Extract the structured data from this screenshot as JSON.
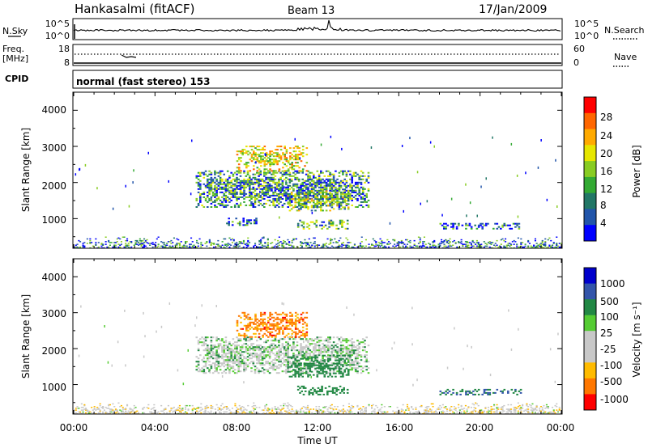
{
  "header": {
    "station": "Hankasalmi (fitACF)",
    "beam": "Beam 13",
    "date": "17/Jan/2009"
  },
  "strips": {
    "nsky_label": "N.Sky",
    "nsky_ticks": [
      "10^5",
      "10^0"
    ],
    "nsearch_label": "N.Search",
    "nsearch_ticks": [
      "10^5",
      "10^0"
    ],
    "freq_label_1": "Freq.",
    "freq_label_2": "[MHz]",
    "freq_ticks": [
      "18",
      "8"
    ],
    "nave_label": "Nave",
    "nave_ticks": [
      "60",
      "0"
    ],
    "cpid_label": "CPID",
    "cpid_text": "normal (fast stereo) 153"
  },
  "axes": {
    "ylabel": "Slant Range [km]",
    "yticks": [
      "4000",
      "3000",
      "2000",
      "1000"
    ],
    "xlabel": "Time UT",
    "xticks": [
      "00:00",
      "04:00",
      "08:00",
      "12:00",
      "16:00",
      "20:00",
      "00:00"
    ]
  },
  "colorbars": {
    "power": {
      "label": "Power [dB]",
      "ticks": [
        "28",
        "24",
        "20",
        "16",
        "12",
        "8",
        "4"
      ],
      "colors": [
        "#ff0000",
        "#ff6600",
        "#ffaa00",
        "#e6e600",
        "#88cc22",
        "#33aa33",
        "#227766",
        "#2255aa",
        "#0000ff"
      ]
    },
    "velocity": {
      "label": "Velocity [m s⁻¹]",
      "ticks": [
        "1000",
        "500",
        "100",
        "25",
        "-25",
        "-100",
        "-500",
        "-1000"
      ],
      "colors": [
        "#0000cc",
        "#3355aa",
        "#228844",
        "#55cc33",
        "#c8c8c8",
        "#c8c8c8",
        "#ffbb00",
        "#ff7700",
        "#ff0000"
      ]
    }
  },
  "chart_data": [
    {
      "type": "heatmap",
      "name": "power",
      "xlabel": "Time UT",
      "ylabel": "Slant Range [km]",
      "xlim_hours": [
        0,
        24
      ],
      "ylim_km": [
        180,
        4500
      ],
      "value_label": "Power [dB]",
      "value_range": [
        0,
        30
      ],
      "regions": [
        {
          "t0": 6.0,
          "t1": 14.5,
          "r0": 1300,
          "r1": 2300,
          "value": 10
        },
        {
          "t0": 8.0,
          "t1": 11.5,
          "r0": 2300,
          "r1": 3000,
          "value": 18
        },
        {
          "t0": 10.5,
          "t1": 13.5,
          "r0": 1200,
          "r1": 1800,
          "value": 14
        },
        {
          "t0": 7.5,
          "t1": 9.0,
          "r0": 800,
          "r1": 1000,
          "value": 8
        },
        {
          "t0": 11.0,
          "t1": 13.5,
          "r0": 700,
          "r1": 950,
          "value": 12
        },
        {
          "t0": 18.0,
          "t1": 22.0,
          "r0": 700,
          "r1": 850,
          "value": 6
        },
        {
          "t0": 0.0,
          "t1": 24.0,
          "r0": 180,
          "r1": 500,
          "value": 8
        }
      ]
    },
    {
      "type": "heatmap",
      "name": "velocity",
      "xlabel": "Time UT",
      "ylabel": "Slant Range [km]",
      "xlim_hours": [
        0,
        24
      ],
      "ylim_km": [
        180,
        4500
      ],
      "value_label": "Velocity [m s⁻¹]",
      "value_range": [
        -1000,
        1000
      ],
      "regions": [
        {
          "t0": 6.0,
          "t1": 14.5,
          "r0": 1300,
          "r1": 2300,
          "value": 0
        },
        {
          "t0": 8.0,
          "t1": 11.5,
          "r0": 2300,
          "r1": 3000,
          "value": -400
        },
        {
          "t0": 10.5,
          "t1": 13.5,
          "r0": 1200,
          "r1": 1800,
          "value": 150
        },
        {
          "t0": 11.0,
          "t1": 13.5,
          "r0": 700,
          "r1": 950,
          "value": 150
        },
        {
          "t0": 18.0,
          "t1": 22.0,
          "r0": 700,
          "r1": 850,
          "value": 300
        },
        {
          "t0": 0.0,
          "t1": 24.0,
          "r0": 180,
          "r1": 500,
          "value": -50
        }
      ]
    }
  ]
}
